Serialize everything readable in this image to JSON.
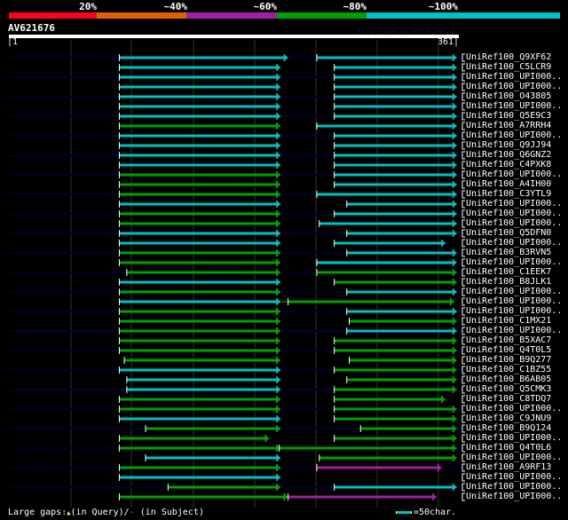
{
  "header": {
    "identity_labels": [
      "20%",
      "~40%",
      "~60%",
      "~80%",
      "~100%"
    ],
    "identity_colors": [
      "#ff0020",
      "#e06000",
      "#a020a0",
      "#00a000",
      "#00c0c0"
    ],
    "query_name": "AV621676",
    "watermark": "AlignView.pm Beta rel.7",
    "axis_start": "|1",
    "axis_end": "361|"
  },
  "query_length": 361,
  "colors": {
    "cyan": "#00c0c0",
    "green": "#00a000",
    "purple": "#a020a0",
    "track": "#000030",
    "grid": "#383810"
  },
  "rows": [
    {
      "label": "UniRef100_Q9XF62",
      "track": true,
      "segs": [
        [
          89,
          221,
          "cyan"
        ],
        [
          247,
          356,
          "cyan"
        ]
      ]
    },
    {
      "label": "UniRef100_C5LCR9",
      "track": false,
      "segs": [
        [
          89,
          215,
          "cyan"
        ],
        [
          261,
          356,
          "cyan"
        ]
      ]
    },
    {
      "label": "UniRef100_UPI000..",
      "track": true,
      "segs": [
        [
          89,
          215,
          "cyan"
        ],
        [
          261,
          356,
          "cyan"
        ]
      ]
    },
    {
      "label": "UniRef100_UPI000..",
      "track": false,
      "segs": [
        [
          89,
          215,
          "cyan"
        ],
        [
          261,
          356,
          "cyan"
        ]
      ]
    },
    {
      "label": "UniRef100_O43805",
      "track": true,
      "segs": [
        [
          89,
          215,
          "cyan"
        ],
        [
          261,
          356,
          "cyan"
        ]
      ]
    },
    {
      "label": "UniRef100_UPI000..",
      "track": false,
      "segs": [
        [
          89,
          215,
          "cyan"
        ],
        [
          261,
          356,
          "cyan"
        ]
      ]
    },
    {
      "label": "UniRef100_Q5E9C3",
      "track": true,
      "segs": [
        [
          89,
          215,
          "cyan"
        ],
        [
          261,
          356,
          "cyan"
        ]
      ]
    },
    {
      "label": "UniRef100_A7RRH4",
      "track": false,
      "segs": [
        [
          89,
          215,
          "green"
        ],
        [
          247,
          356,
          "cyan"
        ]
      ]
    },
    {
      "label": "UniRef100_UPI000..",
      "track": true,
      "segs": [
        [
          89,
          215,
          "cyan"
        ],
        [
          261,
          356,
          "cyan"
        ]
      ]
    },
    {
      "label": "UniRef100_Q9JJ94",
      "track": false,
      "segs": [
        [
          89,
          215,
          "cyan"
        ],
        [
          261,
          356,
          "cyan"
        ]
      ]
    },
    {
      "label": "UniRef100_Q6GNZ2",
      "track": true,
      "segs": [
        [
          89,
          215,
          "cyan"
        ],
        [
          261,
          356,
          "cyan"
        ]
      ]
    },
    {
      "label": "UniRef100_C4PXK8",
      "track": false,
      "segs": [
        [
          89,
          215,
          "cyan"
        ],
        [
          261,
          356,
          "cyan"
        ]
      ]
    },
    {
      "label": "UniRef100_UPI000..",
      "track": true,
      "segs": [
        [
          89,
          215,
          "green"
        ],
        [
          261,
          356,
          "cyan"
        ]
      ]
    },
    {
      "label": "UniRef100_A4IH00",
      "track": false,
      "segs": [
        [
          89,
          215,
          "green"
        ],
        [
          261,
          356,
          "cyan"
        ]
      ]
    },
    {
      "label": "UniRef100_C3YTL9",
      "track": true,
      "segs": [
        [
          89,
          215,
          "green"
        ],
        [
          247,
          356,
          "cyan"
        ]
      ]
    },
    {
      "label": "UniRef100_UPI000..",
      "track": false,
      "segs": [
        [
          89,
          215,
          "cyan"
        ],
        [
          271,
          356,
          "cyan"
        ]
      ]
    },
    {
      "label": "UniRef100_UPI000..",
      "track": true,
      "segs": [
        [
          89,
          215,
          "green"
        ],
        [
          261,
          356,
          "cyan"
        ]
      ]
    },
    {
      "label": "UniRef100_UPI000..",
      "track": false,
      "segs": [
        [
          89,
          215,
          "green"
        ],
        [
          249,
          356,
          "cyan"
        ]
      ]
    },
    {
      "label": "UniRef100_Q5DFN0",
      "track": true,
      "segs": [
        [
          89,
          215,
          "cyan"
        ],
        [
          271,
          356,
          "cyan"
        ]
      ]
    },
    {
      "label": "UniRef100_UPI000..",
      "track": false,
      "segs": [
        [
          89,
          215,
          "cyan"
        ],
        [
          261,
          347,
          "cyan"
        ]
      ]
    },
    {
      "label": "UniRef100_B3RVN5",
      "track": true,
      "segs": [
        [
          89,
          215,
          "green"
        ],
        [
          271,
          356,
          "cyan"
        ]
      ]
    },
    {
      "label": "UniRef100_UPI000..",
      "track": false,
      "segs": [
        [
          89,
          215,
          "green"
        ],
        [
          247,
          356,
          "cyan"
        ]
      ]
    },
    {
      "label": "UniRef100_C1EEK7",
      "track": true,
      "segs": [
        [
          95,
          215,
          "green"
        ],
        [
          247,
          356,
          "green"
        ]
      ]
    },
    {
      "label": "UniRef100_B8JLK1",
      "track": false,
      "segs": [
        [
          89,
          215,
          "cyan"
        ],
        [
          261,
          356,
          "green"
        ]
      ]
    },
    {
      "label": "UniRef100_UPI000..",
      "track": true,
      "segs": [
        [
          89,
          215,
          "green"
        ],
        [
          271,
          356,
          "cyan"
        ]
      ]
    },
    {
      "label": "UniRef100_UPI000..",
      "track": false,
      "segs": [
        [
          89,
          215,
          "cyan"
        ],
        [
          224,
          354,
          "green"
        ]
      ]
    },
    {
      "label": "UniRef100_UPI000..",
      "track": true,
      "segs": [
        [
          89,
          215,
          "green"
        ],
        [
          271,
          356,
          "cyan"
        ]
      ]
    },
    {
      "label": "UniRef100_C1MX21",
      "track": false,
      "segs": [
        [
          89,
          215,
          "green"
        ],
        [
          273,
          356,
          "green"
        ]
      ]
    },
    {
      "label": "UniRef100_UPI000..",
      "track": true,
      "segs": [
        [
          89,
          215,
          "green"
        ],
        [
          271,
          356,
          "cyan"
        ]
      ]
    },
    {
      "label": "UniRef100_B5XAC7",
      "track": false,
      "segs": [
        [
          89,
          215,
          "green"
        ],
        [
          261,
          356,
          "green"
        ]
      ]
    },
    {
      "label": "UniRef100_Q4T0L5",
      "track": true,
      "segs": [
        [
          89,
          215,
          "green"
        ],
        [
          261,
          356,
          "green"
        ]
      ]
    },
    {
      "label": "UniRef100_B9Q277",
      "track": false,
      "segs": [
        [
          93,
          215,
          "green"
        ],
        [
          273,
          356,
          "green"
        ]
      ]
    },
    {
      "label": "UniRef100_C1BZ55",
      "track": true,
      "segs": [
        [
          89,
          215,
          "cyan"
        ],
        [
          261,
          356,
          "green"
        ]
      ]
    },
    {
      "label": "UniRef100_B6AB05",
      "track": false,
      "segs": [
        [
          95,
          215,
          "cyan"
        ],
        [
          271,
          356,
          "green"
        ]
      ]
    },
    {
      "label": "UniRef100_Q5CMK3",
      "track": true,
      "segs": [
        [
          95,
          215,
          "cyan"
        ],
        [
          261,
          356,
          "green"
        ]
      ]
    },
    {
      "label": "UniRef100_C8TDQ7",
      "track": false,
      "segs": [
        [
          89,
          215,
          "green"
        ],
        [
          261,
          347,
          "green"
        ]
      ]
    },
    {
      "label": "UniRef100_UPI000..",
      "track": true,
      "segs": [
        [
          89,
          215,
          "green"
        ],
        [
          261,
          356,
          "green"
        ]
      ]
    },
    {
      "label": "UniRef100_C9JNU9",
      "track": false,
      "segs": [
        [
          89,
          215,
          "cyan"
        ],
        [
          261,
          356,
          "green"
        ]
      ]
    },
    {
      "label": "UniRef100_B9Q124",
      "track": true,
      "segs": [
        [
          110,
          215,
          "green"
        ],
        [
          282,
          356,
          "green"
        ]
      ]
    },
    {
      "label": "UniRef100_UPI000..",
      "track": false,
      "segs": [
        [
          89,
          206,
          "green"
        ],
        [
          261,
          356,
          "green"
        ]
      ]
    },
    {
      "label": "UniRef100_Q4T0L6",
      "track": true,
      "segs": [
        [
          89,
          215,
          "green"
        ],
        [
          217,
          356,
          "green"
        ]
      ]
    },
    {
      "label": "UniRef100_UPI000..",
      "track": false,
      "segs": [
        [
          110,
          215,
          "cyan"
        ],
        [
          249,
          356,
          "green"
        ]
      ]
    },
    {
      "label": "UniRef100_A9RF13",
      "track": true,
      "segs": [
        [
          89,
          215,
          "green"
        ],
        [
          247,
          344,
          "purple"
        ]
      ]
    },
    {
      "label": "UniRef100_UPI000..",
      "track": false,
      "segs": [
        [
          89,
          215,
          "cyan"
        ]
      ]
    },
    {
      "label": "UniRef100_UPI000..",
      "track": true,
      "segs": [
        [
          128,
          215,
          "green"
        ],
        [
          261,
          356,
          "cyan"
        ]
      ]
    },
    {
      "label": "UniRef100_UPI000..",
      "track": false,
      "segs": [
        [
          89,
          221,
          "green"
        ],
        [
          224,
          340,
          "purple"
        ]
      ]
    }
  ],
  "footer": {
    "gaps_label": "Large gaps:",
    "query_gap_icon": "yellow-triangle-icon",
    "in_query": "(in Query)/",
    "subject_gap_icon": "cyan-dash-icon",
    "in_subject": " (in Subject)",
    "scale_label": "=50char."
  }
}
